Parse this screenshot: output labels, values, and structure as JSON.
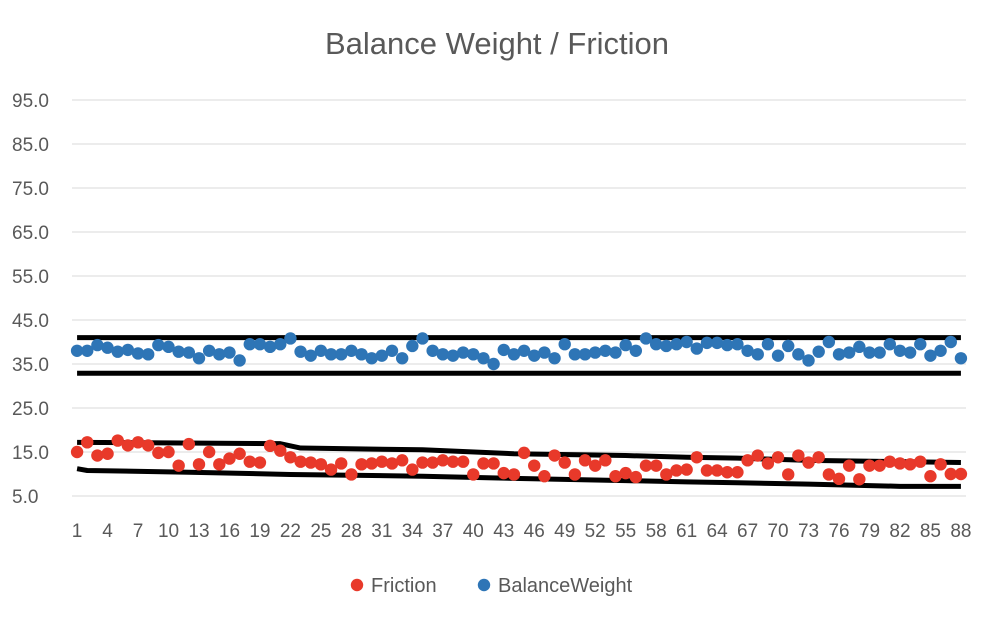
{
  "chart_data": {
    "type": "scatter",
    "title": "Balance Weight / Friction",
    "xlabel": "",
    "ylabel": "",
    "ylim": [
      5,
      95
    ],
    "yticks": [
      "95.0",
      "85.0",
      "75.0",
      "65.0",
      "55.0",
      "45.0",
      "35.0",
      "25.0",
      "15.0",
      "5.0"
    ],
    "xlim": [
      1,
      88
    ],
    "xticks": [
      1,
      4,
      7,
      10,
      13,
      16,
      19,
      22,
      25,
      28,
      31,
      34,
      37,
      40,
      43,
      46,
      49,
      52,
      55,
      58,
      61,
      64,
      67,
      70,
      73,
      76,
      79,
      82,
      85,
      88
    ],
    "grid": true,
    "legend_position": "bottom",
    "series": [
      {
        "name": "Friction",
        "color": "#e8392a",
        "values": [
          15,
          17.2,
          14.2,
          14.6,
          17.6,
          16.5,
          17.2,
          16.5,
          14.8,
          15,
          11.9,
          16.8,
          12.2,
          15,
          12.2,
          13.5,
          14.6,
          12.8,
          12.6,
          16.4,
          15.3,
          13.8,
          12.8,
          12.6,
          12.2,
          11,
          12.4,
          9.9,
          12.2,
          12.4,
          12.8,
          12.4,
          13.1,
          11,
          12.6,
          12.6,
          13.1,
          12.8,
          12.8,
          9.9,
          12.4,
          12.4,
          10.2,
          9.9,
          14.8,
          11.9,
          9.5,
          14.2,
          12.6,
          9.9,
          13.1,
          11.9,
          13.1,
          9.5,
          10.2,
          9.3,
          11.9,
          11.9,
          9.9,
          10.8,
          11,
          13.8,
          10.8,
          10.8,
          10.4,
          10.4,
          13.1,
          14.2,
          12.4,
          13.8,
          9.9,
          14.2,
          12.6,
          13.8,
          9.9,
          8.9,
          11.9,
          8.8,
          11.9,
          11.9,
          12.8,
          12.4,
          12.2,
          12.8,
          9.5,
          12.2,
          10,
          10
        ]
      },
      {
        "name": "BalanceWeight",
        "color": "#2e75b6",
        "values": [
          38,
          38,
          39.3,
          38.7,
          37.8,
          38.2,
          37.4,
          37.2,
          39.3,
          38.9,
          37.8,
          37.6,
          36.3,
          38,
          37.2,
          37.6,
          35.8,
          39.5,
          39.5,
          38.9,
          39.5,
          40.8,
          37.8,
          36.9,
          38,
          37.2,
          37.2,
          38,
          37.2,
          36.3,
          36.9,
          38,
          36.3,
          39.1,
          40.8,
          38,
          37.2,
          36.9,
          37.6,
          37.2,
          36.3,
          35,
          38.2,
          37.2,
          38,
          36.9,
          37.6,
          36.3,
          39.5,
          37.2,
          37.2,
          37.6,
          38,
          37.6,
          39.3,
          38,
          40.8,
          39.5,
          39.1,
          39.5,
          40,
          38.5,
          39.8,
          39.8,
          39.3,
          39.5,
          38,
          37.2,
          39.5,
          36.9,
          39.1,
          37.2,
          35.8,
          37.8,
          40,
          37.2,
          37.6,
          38.9,
          37.6,
          37.6,
          39.5,
          38,
          37.6,
          39.5,
          36.9,
          38,
          40,
          36.3
        ]
      }
    ],
    "control_limit_lines": [
      {
        "series": "BalanceWeight",
        "label": "upper",
        "x": [
          1,
          88
        ],
        "y": [
          41,
          41
        ]
      },
      {
        "series": "BalanceWeight",
        "label": "lower",
        "x": [
          1,
          88
        ],
        "y": [
          32.9,
          32.9
        ]
      },
      {
        "series": "Friction",
        "label": "upper",
        "x": [
          1,
          21,
          23,
          35,
          44,
          55,
          61,
          66,
          73,
          82,
          88
        ],
        "y": [
          17.2,
          16.9,
          15.9,
          15.5,
          14.6,
          14.2,
          13.8,
          13.6,
          13.1,
          12.8,
          12.6
        ]
      },
      {
        "series": "Friction",
        "label": "lower",
        "x": [
          1,
          2,
          12,
          22,
          35,
          44,
          55,
          61,
          66,
          73,
          82,
          88
        ],
        "y": [
          11.2,
          10.8,
          10.4,
          9.9,
          9.5,
          9.0,
          8.5,
          8.2,
          8.0,
          7.7,
          7.2,
          7.2
        ]
      }
    ]
  }
}
